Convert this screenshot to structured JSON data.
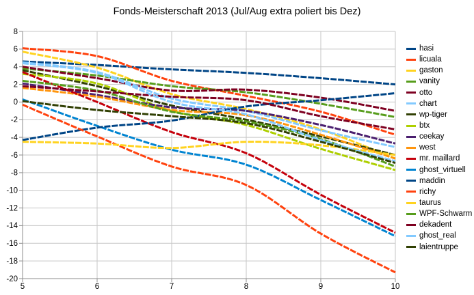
{
  "title": "Fonds-Meisterschaft 2013 (Jul/Aug extra poliert bis Dez)",
  "colors": {
    "background": "#ffffff",
    "grid": "#c6c6c6",
    "axis": "#8e8e8e",
    "text": "#000000"
  },
  "chart_data": {
    "type": "line",
    "title": "Fonds-Meisterschaft 2013 (Jul/Aug extra poliert bis Dez)",
    "xlabel": "",
    "ylabel": "",
    "xlim": [
      5,
      10
    ],
    "ylim": [
      -20,
      8
    ],
    "grid": true,
    "legend_position": "right",
    "x_ticks": [
      "5",
      "6",
      "7",
      "8",
      "9",
      "10"
    ],
    "y_ticks": [
      "8",
      "6",
      "4",
      "2",
      "0",
      "-2",
      "-4",
      "-6",
      "-8",
      "-10",
      "-12",
      "-14",
      "-16",
      "-18",
      "-20"
    ],
    "x": [
      5,
      6,
      7,
      8,
      9,
      10
    ],
    "series": [
      {
        "name": "hasi",
        "color": "#004586",
        "values": [
          4.6,
          4.2,
          3.7,
          3.3,
          2.7,
          2.0
        ]
      },
      {
        "name": "licuala",
        "color": "#FF420E",
        "values": [
          6.1,
          5.2,
          2.4,
          0.7,
          -1.1,
          -3.7
        ]
      },
      {
        "name": "gaston",
        "color": "#FFD320",
        "values": [
          5.7,
          3.9,
          0.9,
          -0.8,
          -3.1,
          -6.4
        ]
      },
      {
        "name": "vanity",
        "color": "#579D1C",
        "values": [
          3.8,
          3.0,
          1.8,
          1.1,
          -0.2,
          -1.7
        ]
      },
      {
        "name": "otto",
        "color": "#7E0021",
        "values": [
          4.0,
          2.7,
          1.3,
          1.4,
          0.5,
          -1.0
        ]
      },
      {
        "name": "chart",
        "color": "#83CAFF",
        "values": [
          4.5,
          3.4,
          0.4,
          -1.0,
          -3.2,
          -5.1
        ]
      },
      {
        "name": "wp-tiger",
        "color": "#314004",
        "values": [
          3.6,
          1.8,
          -0.4,
          -2.0,
          -3.9,
          -6.0
        ]
      },
      {
        "name": "btx",
        "color": "#AECF00",
        "values": [
          3.2,
          2.1,
          -1.0,
          -2.6,
          -5.3,
          -7.7
        ]
      },
      {
        "name": "ceekay",
        "color": "#4B1F6F",
        "values": [
          2.1,
          0.8,
          -0.6,
          -1.0,
          -2.6,
          -4.7
        ]
      },
      {
        "name": "west",
        "color": "#FF950E",
        "values": [
          1.6,
          0.6,
          -0.9,
          -1.5,
          -3.7,
          -6.4
        ]
      },
      {
        "name": "mr. maillard",
        "color": "#C5000B",
        "values": [
          3.4,
          0.0,
          -3.4,
          -5.8,
          -10.5,
          -14.8
        ]
      },
      {
        "name": "ghost_virtuell",
        "color": "#0084D1",
        "values": [
          0.3,
          -2.7,
          -5.4,
          -7.1,
          -11.1,
          -15.2
        ]
      },
      {
        "name": "maddin",
        "color": "#004586",
        "values": [
          -4.3,
          -2.9,
          -2.1,
          -0.5,
          0.2,
          1.0
        ]
      },
      {
        "name": "richy",
        "color": "#FF420E",
        "values": [
          -0.3,
          -3.9,
          -7.3,
          -9.4,
          -14.9,
          -19.3
        ]
      },
      {
        "name": "taurus",
        "color": "#FFD320",
        "values": [
          -4.5,
          -4.7,
          -5.2,
          -4.5,
          -4.9,
          -6.0
        ]
      },
      {
        "name": "WPF-Schwarm",
        "color": "#579D1C",
        "values": [
          2.4,
          1.3,
          -1.1,
          -2.2,
          -4.2,
          -7.3
        ]
      },
      {
        "name": "dekadent",
        "color": "#7E0021",
        "values": [
          1.8,
          1.2,
          0.6,
          0.2,
          -1.6,
          -3.1
        ]
      },
      {
        "name": "ghost_real",
        "color": "#83CAFF",
        "values": [
          4.4,
          3.3,
          0.0,
          -1.4,
          -4.3,
          -6.7
        ]
      },
      {
        "name": "laientruppe",
        "color": "#314004",
        "values": [
          0.1,
          -0.9,
          -1.6,
          -2.4,
          -4.5,
          -6.9
        ]
      }
    ]
  }
}
